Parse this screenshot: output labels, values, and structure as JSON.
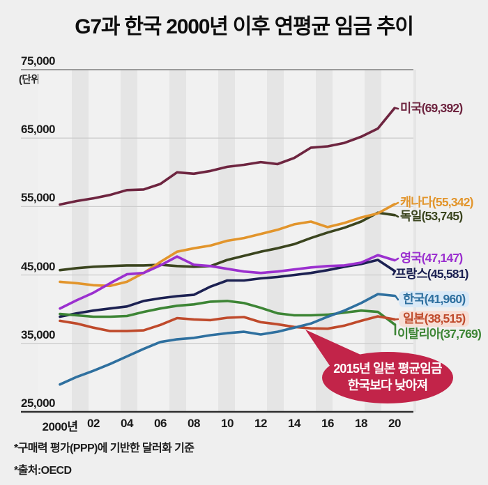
{
  "title": "G7과 한국 2000년 이후 연평균 임금 추이",
  "unit_label": "(단위:달러)",
  "footnotes": [
    "*구매력 평가(PPP)에 기반한 달러화 기준",
    "*출처:OECD"
  ],
  "annotation": {
    "line1": "2015년 일본 평균임금",
    "line2": "한국보다 낮아져",
    "bg": "#c22449",
    "text_color": "#ffffff"
  },
  "colors": {
    "page_bg": "#efefef",
    "plot_bg": "#f1f1f1",
    "stripe": "#e5e5e5",
    "grid_top": "#7f7f7f",
    "grid_mid": "#cdcdcd",
    "axis_bottom": "#2f2f2f"
  },
  "chart_data": {
    "type": "line",
    "x": [
      2000,
      2001,
      2002,
      2003,
      2004,
      2005,
      2006,
      2007,
      2008,
      2009,
      2010,
      2011,
      2012,
      2013,
      2014,
      2015,
      2016,
      2017,
      2018,
      2019,
      2020
    ],
    "x_ticks": [
      {
        "label": "2000년",
        "year": 2000
      },
      {
        "label": "02",
        "year": 2002
      },
      {
        "label": "04",
        "year": 2004
      },
      {
        "label": "06",
        "year": 2006
      },
      {
        "label": "08",
        "year": 2008
      },
      {
        "label": "10",
        "year": 2010
      },
      {
        "label": "12",
        "year": 2012
      },
      {
        "label": "14",
        "year": 2014
      },
      {
        "label": "16",
        "year": 2016
      },
      {
        "label": "18",
        "year": 2018
      },
      {
        "label": "20",
        "year": 2020
      }
    ],
    "ylim": [
      25000,
      75000
    ],
    "y_ticks": [
      {
        "label": "75,000",
        "value": 75000
      },
      {
        "label": "65,000",
        "value": 65000
      },
      {
        "label": "55,000",
        "value": 55000
      },
      {
        "label": "45,000",
        "value": 45000
      },
      {
        "label": "35,000",
        "value": 35000
      },
      {
        "label": "25,000",
        "value": 25000
      }
    ],
    "series": [
      {
        "name": "미국",
        "label": "미국(69,392)",
        "final": 69392,
        "color": "#6e2540",
        "values": [
          55300,
          55800,
          56200,
          56700,
          57400,
          57500,
          58300,
          60000,
          59800,
          60200,
          60800,
          61100,
          61500,
          61200,
          62100,
          63600,
          63800,
          64300,
          65200,
          66400,
          69392
        ]
      },
      {
        "name": "독일",
        "label": "독일(53,745)",
        "final": 53745,
        "color": "#3b451f",
        "values": [
          45700,
          46000,
          46200,
          46300,
          46400,
          46400,
          46500,
          46300,
          46200,
          46300,
          47200,
          47800,
          48400,
          48900,
          49500,
          50400,
          51200,
          51900,
          52800,
          54100,
          53745
        ]
      },
      {
        "name": "캐나다",
        "label": "캐나다(55,342)",
        "final": 55342,
        "color": "#e2952c",
        "values": [
          44000,
          43800,
          43500,
          43400,
          44000,
          45300,
          46900,
          48400,
          48900,
          49300,
          50000,
          50400,
          51000,
          51600,
          52400,
          52800,
          52000,
          52600,
          53400,
          54000,
          55342
        ]
      },
      {
        "name": "프랑스",
        "label": "프랑스(45,581)",
        "final": 45581,
        "color": "#1c2152",
        "values": [
          38900,
          39400,
          39800,
          40100,
          40400,
          41200,
          41600,
          41900,
          42100,
          43300,
          44200,
          44200,
          44500,
          44700,
          45000,
          45300,
          45700,
          46200,
          46600,
          47200,
          45581
        ]
      },
      {
        "name": "영국",
        "label": "영국(47,147)",
        "final": 47147,
        "color": "#9b30cf",
        "values": [
          40100,
          41300,
          42400,
          43800,
          45100,
          45300,
          46400,
          47700,
          46500,
          46300,
          45900,
          45500,
          45300,
          45500,
          45800,
          46100,
          46300,
          46400,
          46800,
          47900,
          47147
        ]
      },
      {
        "name": "이탈리아",
        "label": "이탈리아(37,769)",
        "final": 37769,
        "color": "#3d8535",
        "values": [
          39300,
          39100,
          38900,
          38900,
          39000,
          39600,
          40100,
          40500,
          40700,
          41100,
          41200,
          40900,
          40200,
          39400,
          39100,
          39100,
          39200,
          39500,
          39800,
          39600,
          37769
        ]
      },
      {
        "name": "일본",
        "label": "일본(38,515)",
        "final": 38515,
        "color": "#bf4a2b",
        "label_bg": "#f7ded5",
        "values": [
          38300,
          37900,
          37300,
          36800,
          36800,
          36900,
          37700,
          38700,
          38500,
          38400,
          38750,
          38850,
          38100,
          37800,
          37400,
          37200,
          37150,
          37600,
          38300,
          38950,
          38515
        ]
      },
      {
        "name": "한국",
        "label": "한국(41,960)",
        "final": 41960,
        "color": "#2f709f",
        "label_bg": "#d9e9f7",
        "values": [
          29000,
          30100,
          31000,
          32000,
          33100,
          34200,
          35200,
          35600,
          35800,
          36200,
          36500,
          36700,
          36300,
          36700,
          37300,
          37900,
          38900,
          39800,
          40900,
          42200,
          41960
        ]
      }
    ],
    "legend_position": "right",
    "grid": "horizontal"
  }
}
